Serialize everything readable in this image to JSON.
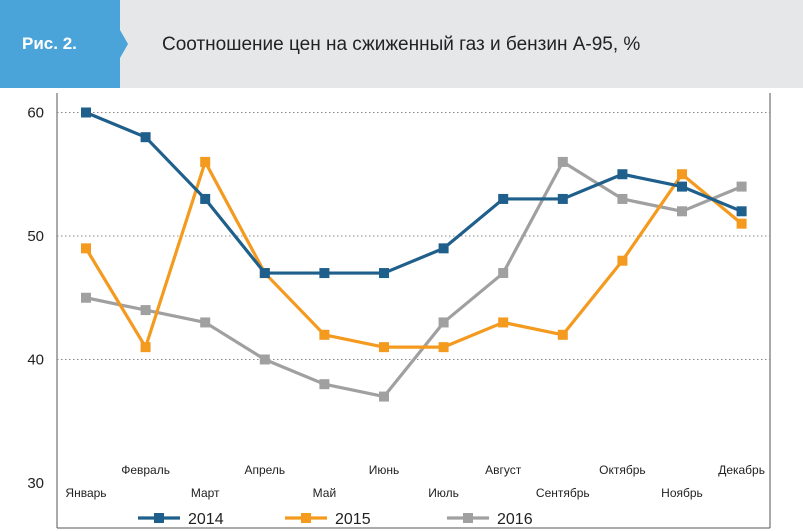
{
  "figure": {
    "label": "Рис. 2.",
    "title": "Соотношение цен на сжиженный газ и бензин А-95, %"
  },
  "colors": {
    "header_bg": "#e6e7e9",
    "badge_bg": "#4aa3d9",
    "series_2014": "#1f5f8b",
    "series_2015": "#f39a1f",
    "series_2016": "#a0a0a0"
  },
  "chart_data": {
    "type": "line",
    "title": "Соотношение цен на сжиженный газ и бензин А-95, %",
    "categories": [
      "Январь",
      "Февраль",
      "Март",
      "Апрель",
      "Май",
      "Июнь",
      "Июль",
      "Август",
      "Сентябрь",
      "Октябрь",
      "Ноябрь",
      "Декабрь"
    ],
    "yticks": [
      30,
      40,
      50,
      60
    ],
    "ylim": [
      30,
      60
    ],
    "grid": true,
    "legend_position": "bottom",
    "series": [
      {
        "name": "2014",
        "color": "#1f5f8b",
        "values": [
          60,
          58,
          53,
          47,
          47,
          47,
          49,
          53,
          53,
          55,
          54,
          52
        ]
      },
      {
        "name": "2015",
        "color": "#f39a1f",
        "values": [
          49,
          41,
          56,
          47,
          42,
          41,
          41,
          43,
          42,
          48,
          55,
          51
        ]
      },
      {
        "name": "2016",
        "color": "#a0a0a0",
        "values": [
          45,
          44,
          43,
          40,
          38,
          37,
          43,
          47,
          56,
          53,
          52,
          54
        ]
      }
    ]
  }
}
